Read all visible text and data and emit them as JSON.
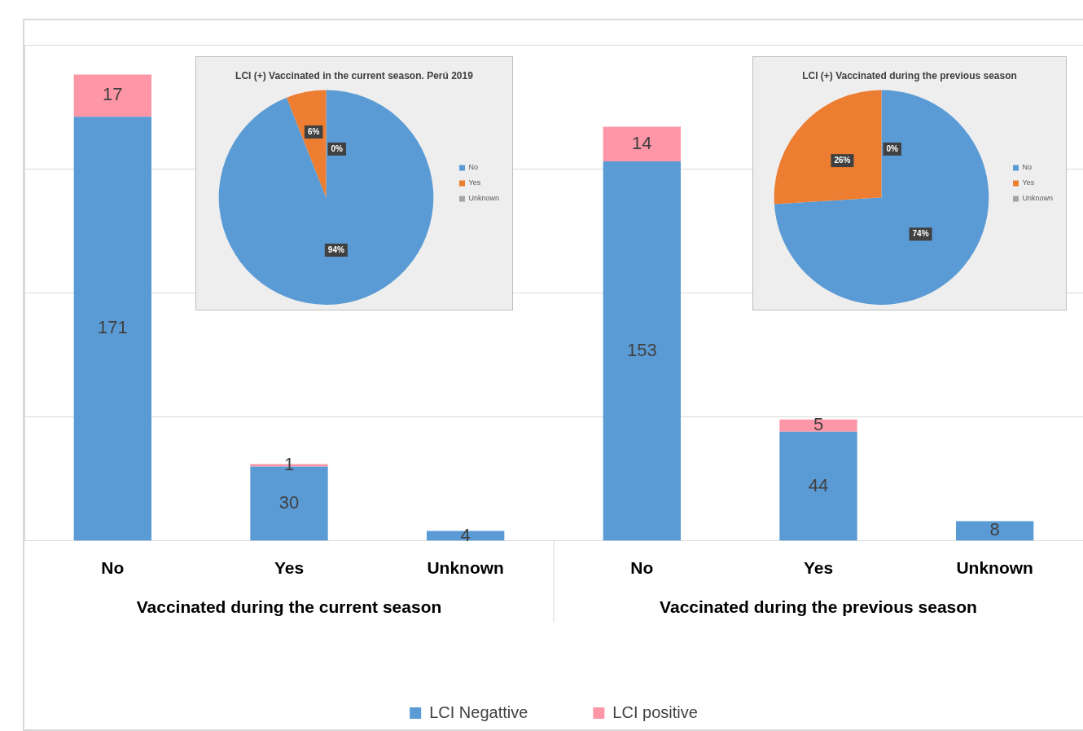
{
  "chart_data": [
    {
      "type": "bar",
      "categories": [
        "No",
        "Yes",
        "Unknown",
        "No",
        "Yes",
        "Unknown"
      ],
      "stacked": true,
      "data_labels": true,
      "grid": "y",
      "tick_labels": "x",
      "legend": "bottom",
      "series": [
        {
          "name": "LCI Negattive",
          "color": "#5b9bd5",
          "values": [
            171,
            30,
            4,
            153,
            44,
            8
          ]
        },
        {
          "name": "LCI positive",
          "color": "#fd96a6",
          "values": [
            17,
            1,
            null,
            14,
            5,
            null
          ]
        }
      ],
      "annotations": [
        "Vaccinated during the current season",
        "Vaccinated during the previous season"
      ]
    },
    {
      "type": "pie",
      "title": "LCI (+) Vaccinated in the current season. Perú 2019",
      "categories": [
        "No",
        "Yes",
        "Unknown"
      ],
      "values": [
        94,
        6,
        0
      ],
      "colors": [
        "#5b9bd5",
        "#ed7d31",
        "#a5a5a5"
      ],
      "value_labels": [
        "94%",
        "6%",
        "0%"
      ],
      "legend": "right"
    },
    {
      "type": "pie",
      "title": "LCI (+) Vaccinated during the previous season",
      "categories": [
        "No",
        "Yes",
        "Unknown"
      ],
      "values": [
        74,
        26,
        0
      ],
      "colors": [
        "#5b9bd5",
        "#ed7d31",
        "#a5a5a5"
      ],
      "value_labels": [
        "74%",
        "26%",
        "0%"
      ],
      "legend": "right"
    }
  ]
}
